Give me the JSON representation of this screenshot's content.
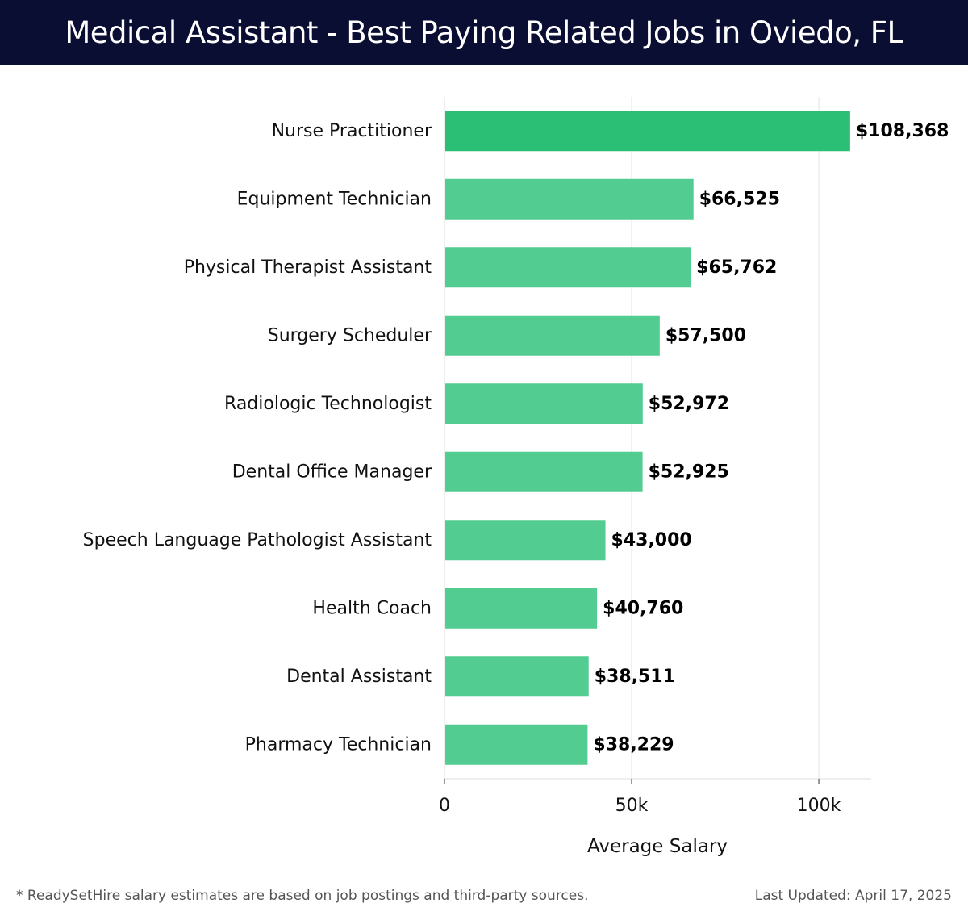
{
  "header": {
    "title": "Medical Assistant - Best Paying Related Jobs in Oviedo, FL"
  },
  "chart_data": {
    "type": "bar",
    "orientation": "horizontal",
    "categories": [
      "Nurse Practitioner",
      "Equipment Technician",
      "Physical Therapist Assistant",
      "Surgery Scheduler",
      "Radiologic Technologist",
      "Dental Office Manager",
      "Speech Language Pathologist Assistant",
      "Health Coach",
      "Dental Assistant",
      "Pharmacy Technician"
    ],
    "values": [
      108368,
      66525,
      65762,
      57500,
      52972,
      52925,
      43000,
      40760,
      38511,
      38229
    ],
    "value_labels": [
      "$108,368",
      "$66,525",
      "$65,762",
      "$57,500",
      "$52,972",
      "$52,925",
      "$43,000",
      "$40,760",
      "$38,511",
      "$38,229"
    ],
    "xlabel": "Average Salary",
    "ylabel": "",
    "xlim": [
      0,
      114000
    ],
    "x_ticks": [
      0,
      50000,
      100000
    ],
    "x_tick_labels": [
      "0",
      "50k",
      "100k"
    ],
    "grid": "vertical",
    "colors": {
      "top_bar": "#2bbf76",
      "bar": "#52cc90"
    }
  },
  "footer": {
    "note": "* ReadySetHire salary estimates are based on job postings and third-party sources.",
    "updated": "Last Updated: April 17, 2025"
  }
}
